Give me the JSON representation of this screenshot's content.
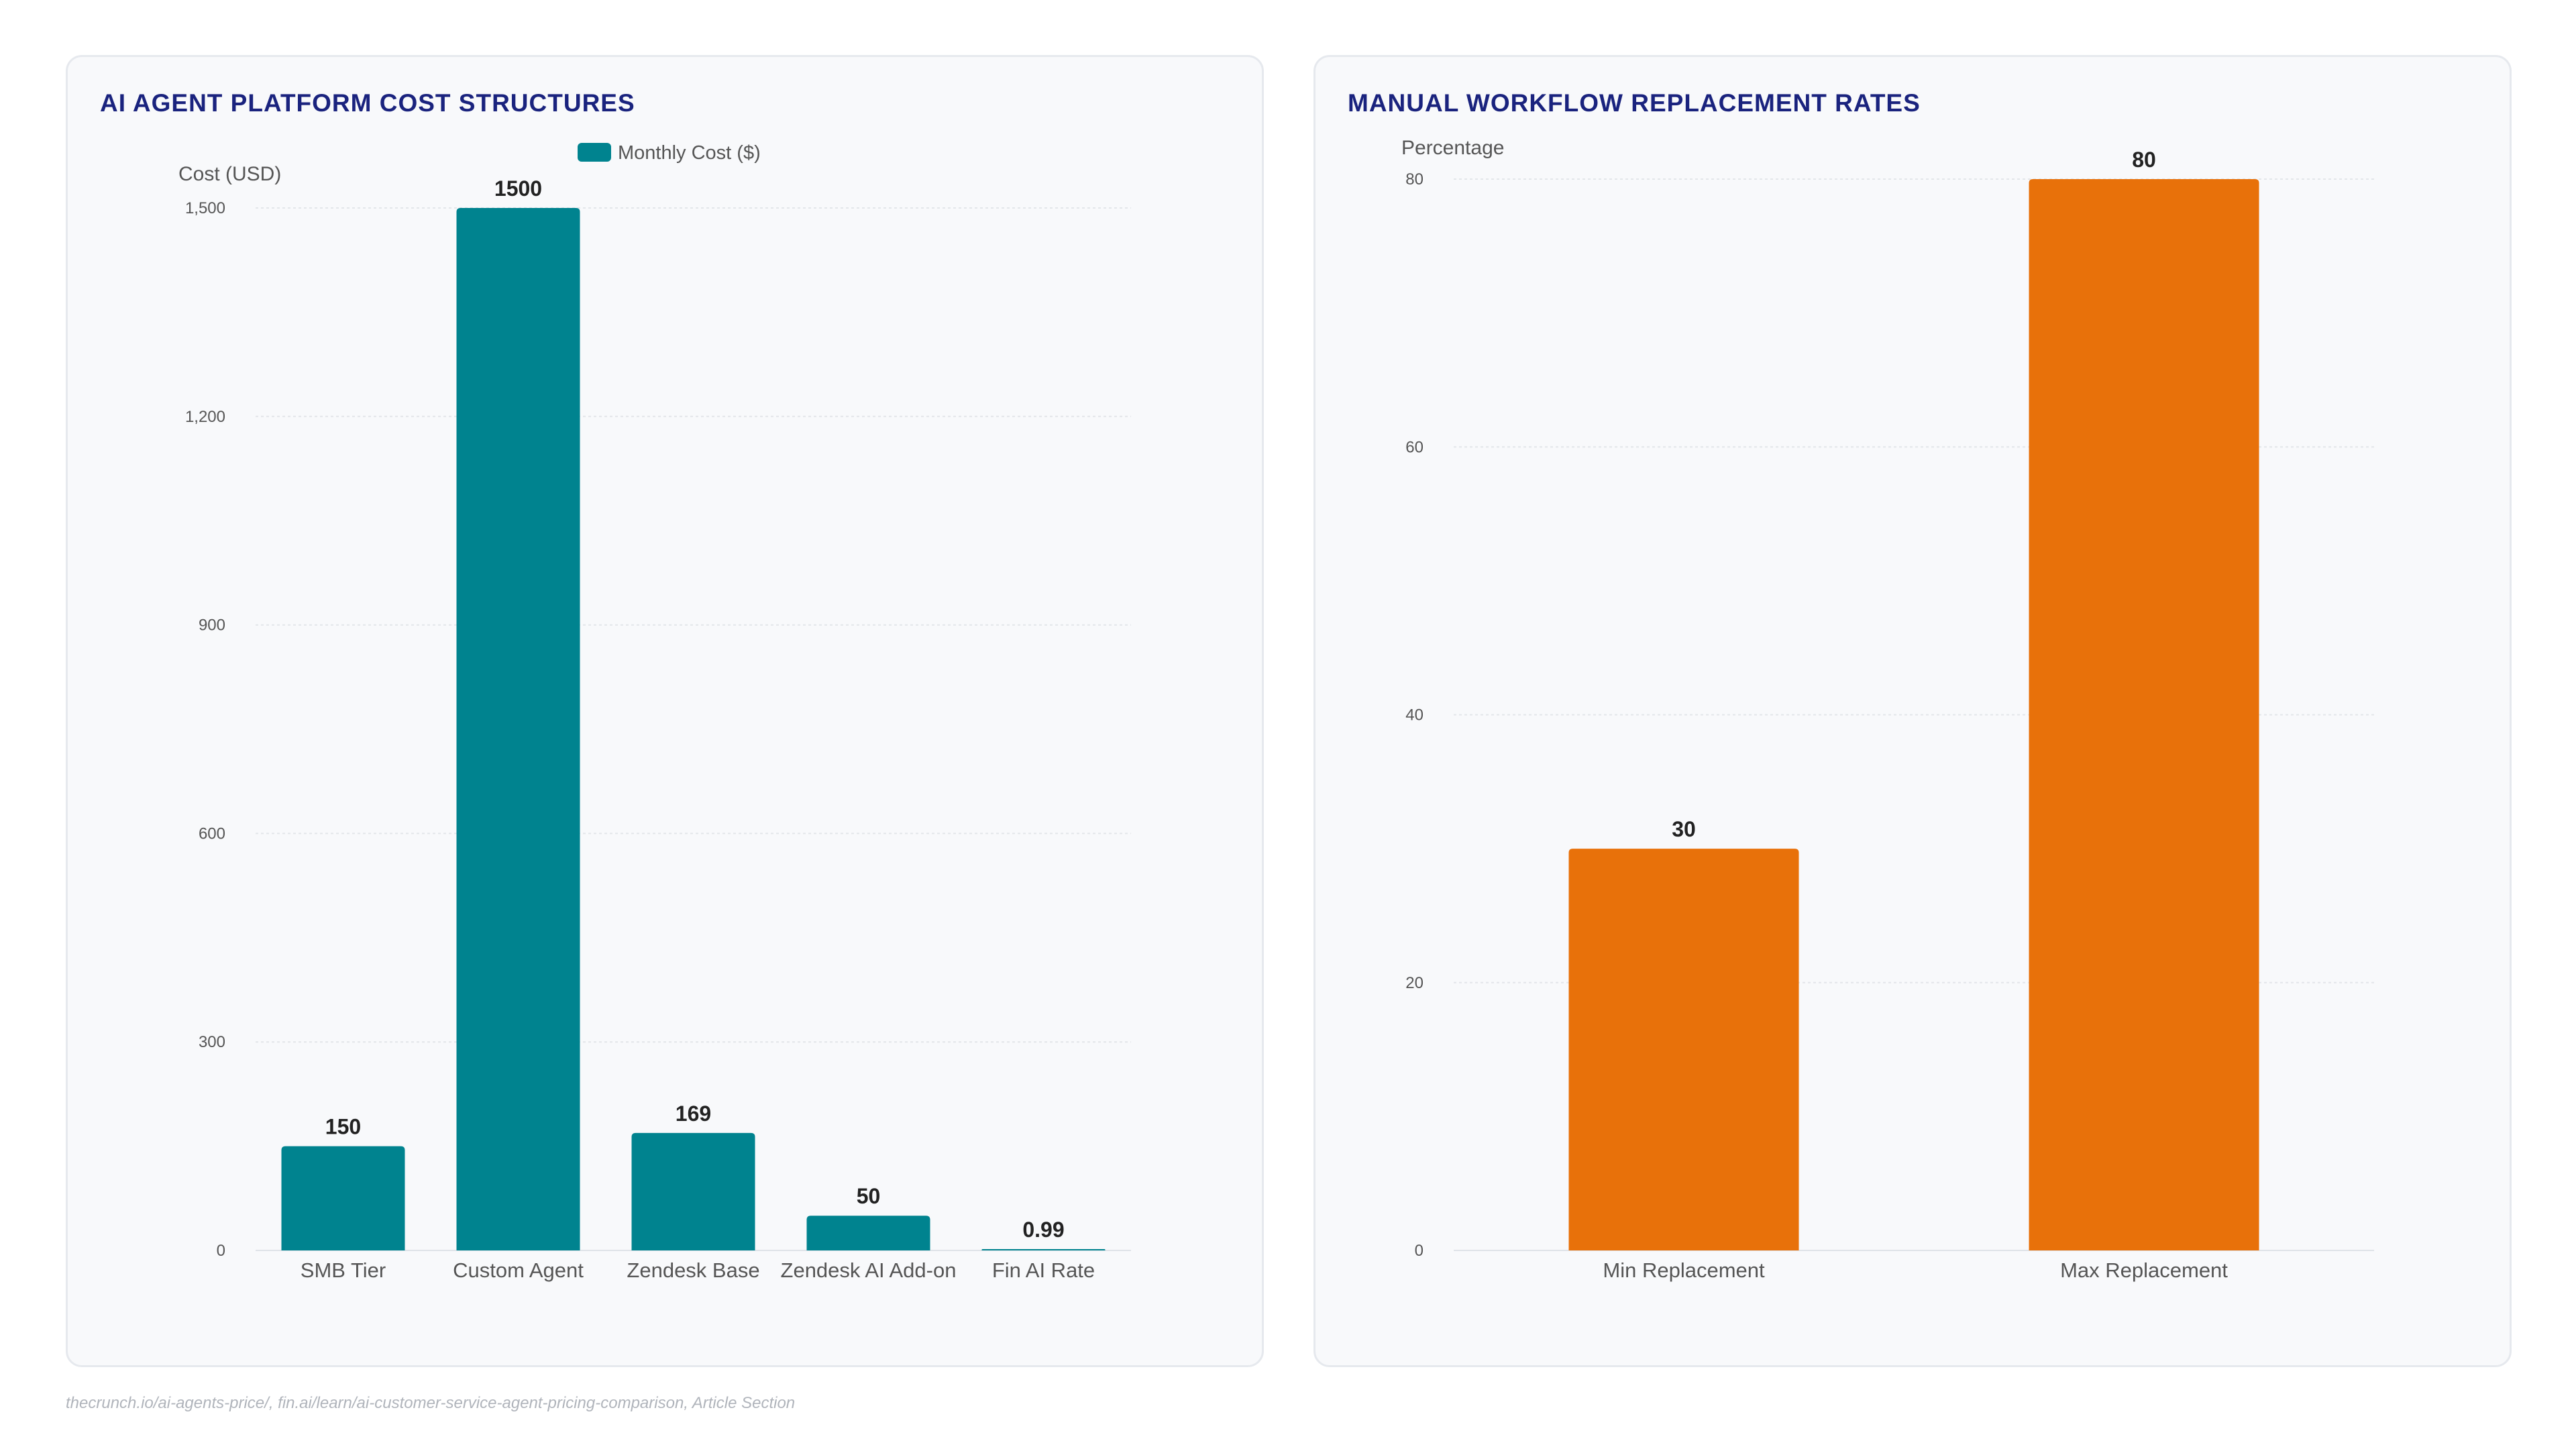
{
  "chart_data": [
    {
      "type": "bar",
      "title": "AI AGENT PLATFORM COST STRUCTURES",
      "xlabel": "",
      "ylabel": "Cost (USD)",
      "categories": [
        "SMB Tier",
        "Custom Agent",
        "Zendesk Base",
        "Zendesk AI Add-on",
        "Fin AI Rate"
      ],
      "series": [
        {
          "name": "Monthly Cost ($)",
          "values": [
            150,
            1500,
            169,
            50,
            0.99
          ],
          "color": "#00838f"
        }
      ],
      "value_labels": [
        "150",
        "1500",
        "169",
        "50",
        "0.99"
      ],
      "ylim": [
        0,
        1500
      ],
      "yticks": [
        0,
        300,
        600,
        900,
        1200,
        1500
      ],
      "ytick_labels": [
        "0",
        "300",
        "600",
        "900",
        "1,200",
        "1,500"
      ],
      "grid": true,
      "legend": "top-center"
    },
    {
      "type": "bar",
      "title": "MANUAL WORKFLOW REPLACEMENT RATES",
      "xlabel": "",
      "ylabel": "Percentage",
      "categories": [
        "Min Replacement",
        "Max Replacement"
      ],
      "series": [
        {
          "values": [
            30,
            80
          ],
          "color": "#e8710a"
        }
      ],
      "value_labels": [
        "30",
        "80"
      ],
      "ylim": [
        0,
        80
      ],
      "yticks": [
        0,
        20,
        40,
        60,
        80
      ],
      "ytick_labels": [
        "0",
        "20",
        "40",
        "60",
        "80"
      ],
      "grid": true,
      "legend": "none"
    }
  ],
  "source": "thecrunch.io/ai-agents-price/, fin.ai/learn/ai-customer-service-agent-pricing-comparison, Article Section"
}
